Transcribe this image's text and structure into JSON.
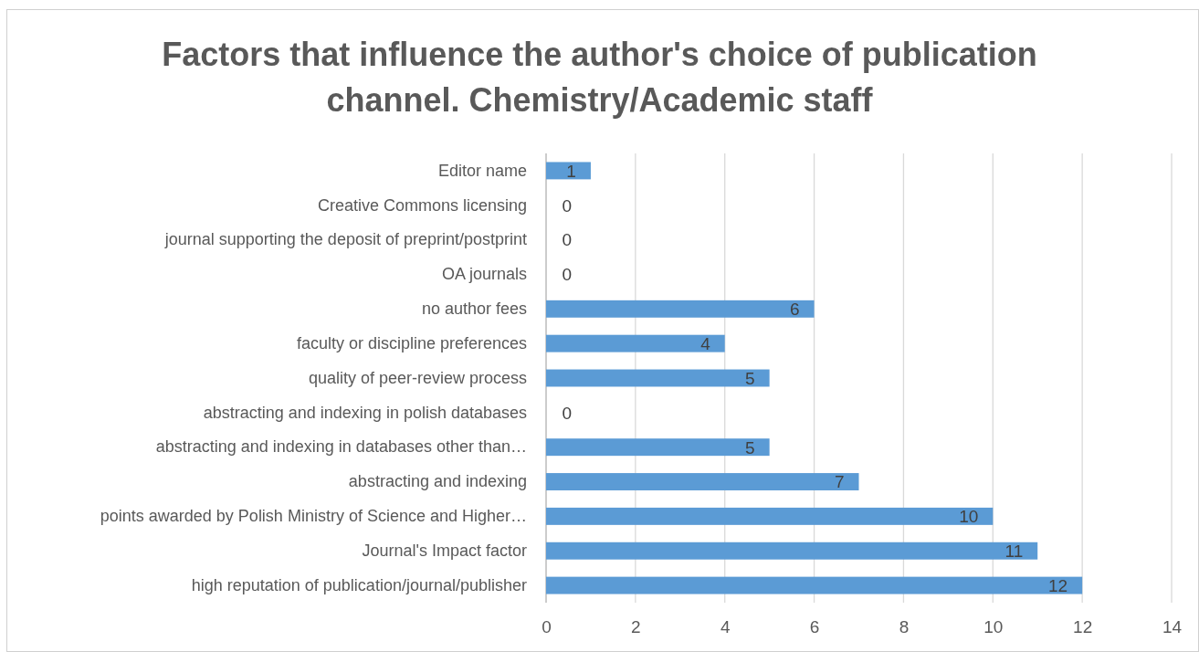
{
  "chart_data": {
    "type": "bar",
    "orientation": "horizontal",
    "title": "Factors that influence the author's choice of publication channel. Chemistry/Academic staff",
    "categories": [
      "Editor name",
      "Creative Commons licensing",
      "journal supporting the deposit of preprint/postprint",
      "OA journals",
      "no author fees",
      "faculty or discipline preferences",
      "quality of peer-review process",
      "abstracting and indexing in polish databases",
      "abstracting and indexing in databases other than…",
      "abstracting and indexing",
      "points awarded by Polish Ministry of Science and Higher…",
      "Journal's Impact factor",
      "high reputation of publication/journal/publisher"
    ],
    "values": [
      1,
      0,
      0,
      0,
      6,
      4,
      5,
      0,
      5,
      7,
      10,
      11,
      12
    ],
    "color": "#5b9bd5",
    "xlim": [
      0,
      14
    ],
    "xticks": [
      0,
      2,
      4,
      6,
      8,
      10,
      12,
      14
    ],
    "grid": "x",
    "data_labels": true
  }
}
